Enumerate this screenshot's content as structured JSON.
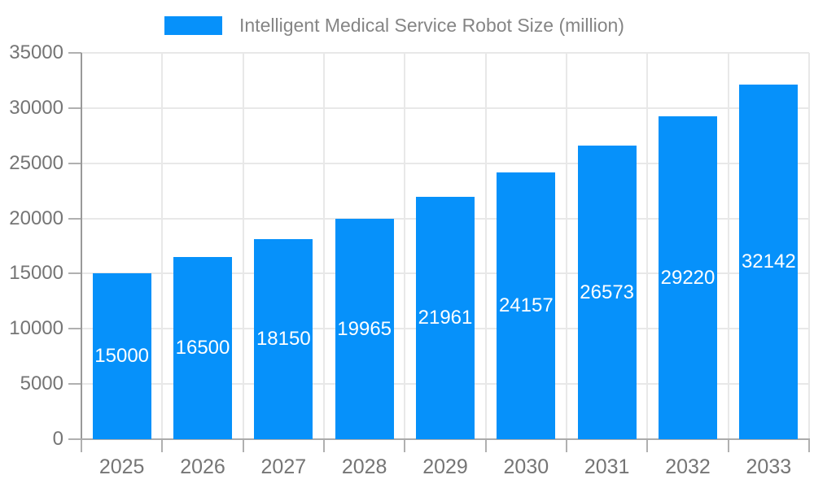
{
  "chart_data": {
    "type": "bar",
    "title": "Intelligent Medical Service Robot Size (million)",
    "categories": [
      "2025",
      "2026",
      "2027",
      "2028",
      "2029",
      "2030",
      "2031",
      "2032",
      "2033"
    ],
    "values": [
      15000,
      16500,
      18150,
      19965,
      21961,
      24157,
      26573,
      29220,
      32142
    ],
    "series": [
      {
        "name": "Intelligent Medical Service Robot Size (million)",
        "values": [
          15000,
          16500,
          18150,
          19965,
          21961,
          24157,
          26573,
          29220,
          32142
        ]
      }
    ],
    "xlabel": "",
    "ylabel": "",
    "ylim": [
      0,
      35000
    ],
    "ytick_step": 5000,
    "ytick_labels": [
      "0",
      "5000",
      "10000",
      "15000",
      "20000",
      "25000",
      "30000",
      "35000"
    ],
    "grid": true,
    "legend_position": "top",
    "value_label_position": "inside-center",
    "colors": {
      "bar": "#0691FA",
      "bar_value_label": "#FFFFFF",
      "axis_text": "#757575",
      "legend_text": "#858585",
      "gridline": "#E8E8E8",
      "axis_line": "#999999",
      "tick": "#B0B0B0",
      "background": "#FFFFFF"
    }
  }
}
